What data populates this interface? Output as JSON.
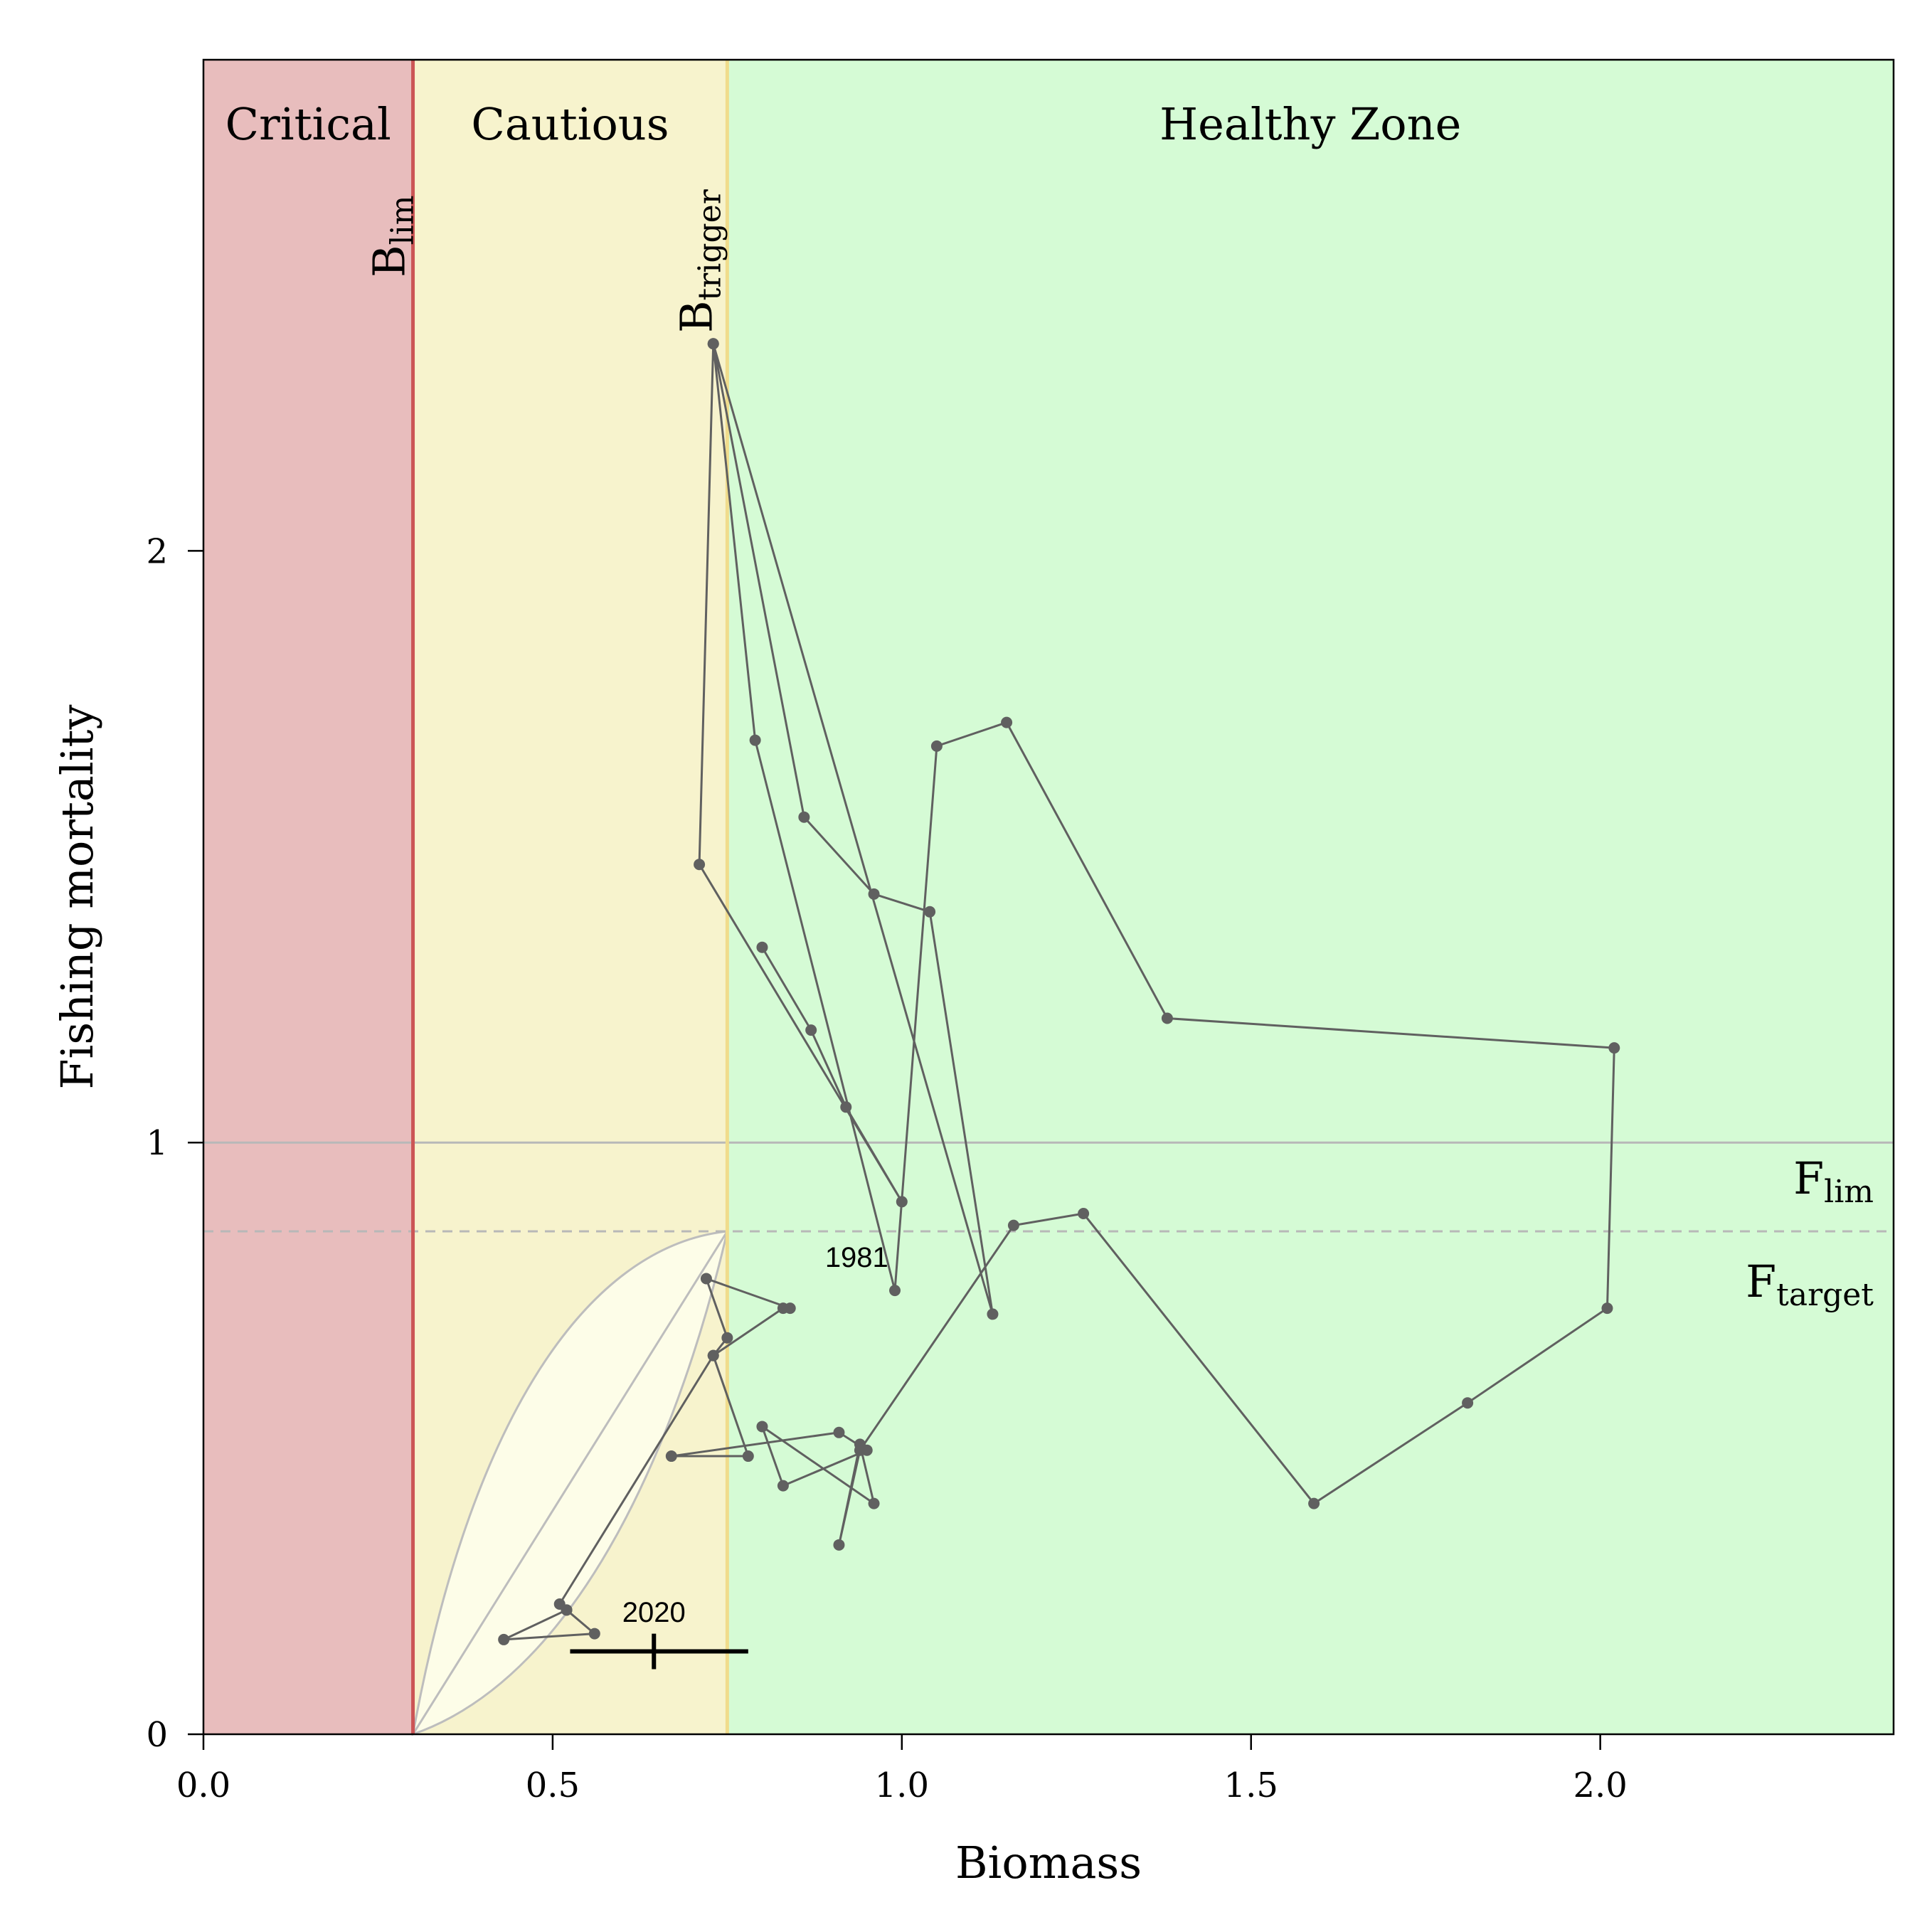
{
  "chart_data": {
    "type": "scatter",
    "xlabel": "Biomass",
    "ylabel": "Fishing mortality",
    "xlim": [
      0,
      2.42
    ],
    "ylim": [
      0,
      2.83
    ],
    "x_ticks": [
      0.0,
      0.5,
      1.0,
      1.5,
      2.0
    ],
    "x_tick_labels": [
      "0.0",
      "0.5",
      "1.0",
      "1.5",
      "2.0"
    ],
    "y_ticks": [
      0,
      1,
      2
    ],
    "y_tick_labels": [
      "0",
      "1",
      "2"
    ],
    "zones": [
      {
        "label": "Critical",
        "from": 0,
        "to": 0.3,
        "color": "#e8bdbd"
      },
      {
        "label": "Cautious",
        "from": 0.3,
        "to": 0.75,
        "color": "#f7f3cd"
      },
      {
        "label": "Healthy Zone",
        "from": 0.75,
        "to": 2.42,
        "color": "#d5fbd5"
      }
    ],
    "reference_points": {
      "blim": {
        "value": 0.3,
        "main": "B",
        "sub": "lim",
        "color": "#cc5555"
      },
      "btrigger": {
        "value": 0.75,
        "main": "B",
        "sub": "trigger",
        "color": "#f0dc8c"
      },
      "flim": {
        "value": 1.0,
        "main": "F",
        "sub": "lim",
        "color": "#b8b8b8"
      },
      "ftarget": {
        "value": 0.85,
        "main": "F",
        "sub": "target",
        "color": "#b8b8b8"
      }
    },
    "first_year_label": "1981",
    "last_year_label": "2020",
    "series": [
      {
        "values": [
          [
            0.8,
            1.33
          ],
          [
            0.87,
            1.19
          ],
          [
            0.92,
            1.06
          ],
          [
            1.0,
            0.9
          ],
          [
            0.71,
            1.47
          ],
          [
            0.73,
            2.35
          ],
          [
            0.86,
            1.55
          ],
          [
            0.96,
            1.42
          ],
          [
            1.04,
            1.39
          ],
          [
            1.13,
            0.71
          ],
          [
            0.73,
            2.35
          ],
          [
            0.79,
            1.68
          ],
          [
            0.99,
            0.75
          ],
          [
            1.05,
            1.67
          ],
          [
            1.15,
            1.71
          ],
          [
            1.38,
            1.21
          ],
          [
            2.02,
            1.16
          ],
          [
            2.01,
            0.72
          ],
          [
            1.81,
            0.56
          ],
          [
            1.59,
            0.39
          ],
          [
            1.26,
            0.88
          ],
          [
            1.16,
            0.86
          ],
          [
            0.94,
            0.48
          ],
          [
            0.91,
            0.32
          ],
          [
            0.94,
            0.49
          ],
          [
            0.96,
            0.39
          ],
          [
            0.8,
            0.52
          ],
          [
            0.83,
            0.42
          ],
          [
            0.95,
            0.48
          ],
          [
            0.91,
            0.51
          ],
          [
            0.67,
            0.47
          ],
          [
            0.78,
            0.47
          ],
          [
            0.73,
            0.64
          ],
          [
            0.75,
            0.67
          ],
          [
            0.72,
            0.77
          ],
          [
            0.84,
            0.72
          ],
          [
            0.83,
            0.72
          ],
          [
            0.73,
            0.64
          ],
          [
            0.51,
            0.22
          ],
          [
            0.52,
            0.21
          ],
          [
            0.43,
            0.16
          ],
          [
            0.56,
            0.17
          ],
          [
            0.52,
            0.21
          ]
        ],
        "color": "#606060"
      }
    ],
    "final_estimate": {
      "x": 0.645,
      "y": 0.14,
      "x_low": 0.525,
      "x_high": 0.78,
      "y_low": 0.11,
      "y_high": 0.17
    },
    "envelope": {
      "start": [
        0.3,
        0.0
      ],
      "end": [
        0.75,
        0.85
      ],
      "fill": "#fdfde8",
      "stroke": "#bdbdbd"
    },
    "grid": false
  }
}
